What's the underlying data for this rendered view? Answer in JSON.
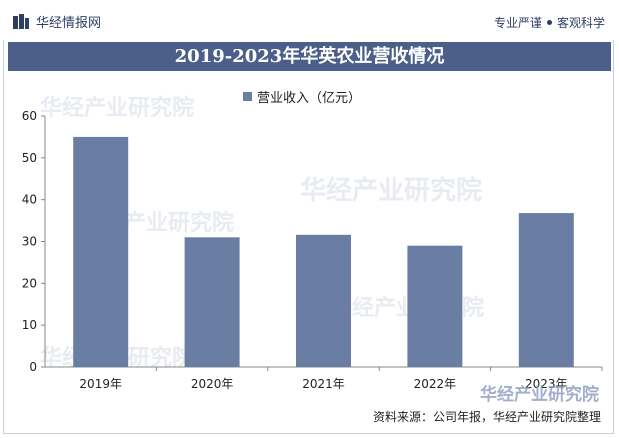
{
  "header": {
    "brand": "华经情报网",
    "slogan_left": "专业严谨",
    "slogan_right": "客观科学"
  },
  "title": "2019-2023年华英农业营收情况",
  "legend_label": "营业收入（亿元）",
  "source": "资料来源：公司年报，华经产业研究院整理",
  "watermark": "华经产业研究院",
  "colors": {
    "bar": "#6a7ea3",
    "title_band": "#4b5f8a"
  },
  "chart_data": {
    "type": "bar",
    "categories": [
      "2019年",
      "2020年",
      "2021年",
      "2022年",
      "2023年"
    ],
    "series": [
      {
        "name": "营业收入（亿元）",
        "values": [
          55.0,
          31.0,
          31.6,
          29.0,
          36.8
        ]
      }
    ],
    "ylim": [
      0,
      60
    ],
    "yticks": [
      0,
      10,
      20,
      30,
      40,
      50,
      60
    ],
    "grid": false,
    "legend": "top-center"
  }
}
